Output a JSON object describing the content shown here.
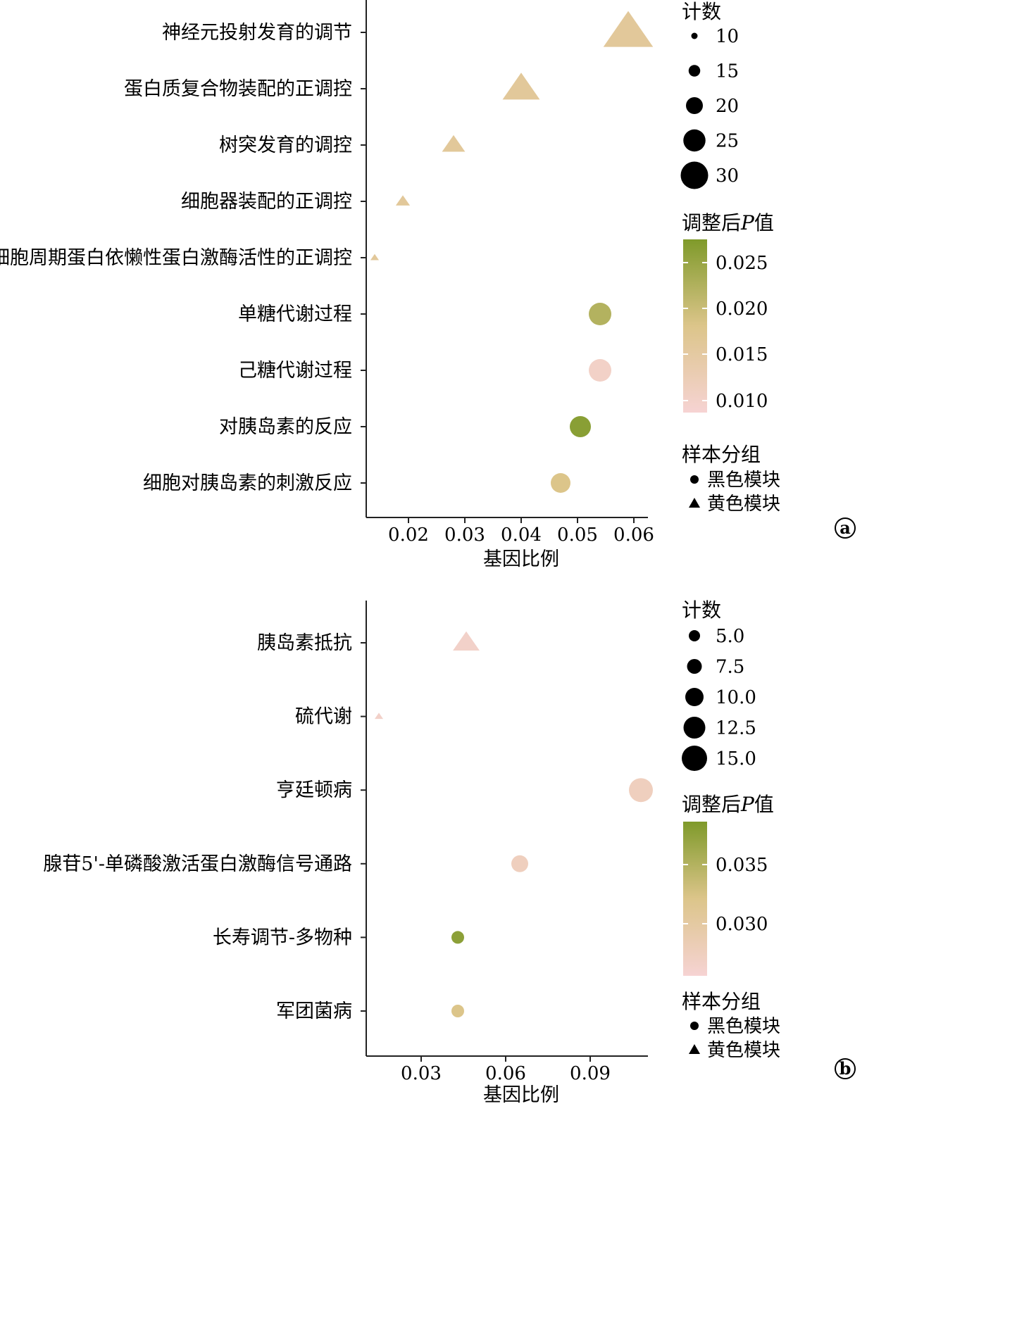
{
  "panels": [
    {
      "label": "a",
      "size_legend_title": "计数",
      "color_legend_title_main": "调整后",
      "color_legend_title_p": "P",
      "color_legend_title_tail": "值",
      "group_legend_title": "样本分组",
      "group_legend_items": [
        "黑色模块",
        "黄色模块"
      ],
      "size_legend_values": [
        "10",
        "15",
        "20",
        "25",
        "30"
      ],
      "color_legend_ticks": [
        "0.025",
        "0.020",
        "0.015",
        "0.010"
      ],
      "chart_data": {
        "type": "scatter",
        "xlabel": "基因比例",
        "xticks": [
          "0.02",
          "0.03",
          "0.04",
          "0.05",
          "0.06"
        ],
        "xlim": [
          0.0125,
          0.0625
        ],
        "categories": [
          "神经元投射发育的调节",
          "蛋白质复合物装配的正调控",
          "树突发育的调控",
          "细胞器装配的正调控",
          "细胞周期蛋白依懒性蛋白激酶活性的正调控",
          "单糖代谢过程",
          "己糖代谢过程",
          "对胰岛素的反应",
          "细胞对胰岛素的刺激反应"
        ],
        "points": [
          {
            "category": "神经元投射发育的调节",
            "x": 0.059,
            "count": 32,
            "padj": 0.016,
            "group": "黄色模块"
          },
          {
            "category": "蛋白质复合物装配的正调控",
            "x": 0.04,
            "count": 25,
            "padj": 0.016,
            "group": "黄色模块"
          },
          {
            "category": "树突发育的调控",
            "x": 0.028,
            "count": 17,
            "padj": 0.016,
            "group": "黄色模块"
          },
          {
            "category": "细胞器装配的正调控",
            "x": 0.019,
            "count": 12,
            "padj": 0.016,
            "group": "黄色模块"
          },
          {
            "category": "细胞周期蛋白依懒性蛋白激酶活性的正调控",
            "x": 0.014,
            "count": 8,
            "padj": 0.016,
            "group": "黄色模块"
          },
          {
            "category": "单糖代谢过程",
            "x": 0.054,
            "count": 20,
            "padj": 0.022,
            "group": "黑色模块"
          },
          {
            "category": "己糖代谢过程",
            "x": 0.054,
            "count": 20,
            "padj": 0.0105,
            "group": "黑色模块"
          },
          {
            "category": "对胰岛素的反应",
            "x": 0.0505,
            "count": 19,
            "padj": 0.026,
            "group": "黑色模块"
          },
          {
            "category": "细胞对胰岛素的刺激反应",
            "x": 0.047,
            "count": 18,
            "padj": 0.018,
            "group": "黑色模块"
          }
        ],
        "color_scale": {
          "low": 0.009,
          "high": 0.027,
          "low_color": "#f6d3d3",
          "mid_color": "#dcc58a",
          "high_color": "#7f9a2a"
        }
      }
    },
    {
      "label": "b",
      "size_legend_title": "计数",
      "color_legend_title_main": "调整后",
      "color_legend_title_p": "P",
      "color_legend_title_tail": "值",
      "group_legend_title": "样本分组",
      "group_legend_items": [
        "黑色模块",
        "黄色模块"
      ],
      "size_legend_values": [
        "5.0",
        "7.5",
        "10.0",
        "12.5",
        "15.0"
      ],
      "color_legend_ticks": [
        "0.035",
        "0.030"
      ],
      "chart_data": {
        "type": "scatter",
        "xlabel": "基因比例",
        "xticks": [
          "0.03",
          "0.06",
          "0.09"
        ],
        "xlim": [
          0.0105,
          0.1105
        ],
        "categories": [
          "胰岛素抵抗",
          "硫代谢",
          "亨廷顿病",
          "腺苷5'-单磷酸激活蛋白激酶信号通路",
          "长寿调节-多物种",
          "军团菌病"
        ],
        "points": [
          {
            "category": "胰岛素抵抗",
            "x": 0.046,
            "count": 12,
            "padj": 0.026,
            "group": "黄色模块"
          },
          {
            "category": "硫代谢",
            "x": 0.015,
            "count": 3,
            "padj": 0.026,
            "group": "黄色模块"
          },
          {
            "category": "亨廷顿病",
            "x": 0.108,
            "count": 14,
            "padj": 0.027,
            "group": "黑色模块"
          },
          {
            "category": "腺苷5'-单磷酸激活蛋白激酶信号通路",
            "x": 0.065,
            "count": 9,
            "padj": 0.027,
            "group": "黑色模块"
          },
          {
            "category": "长寿调节-多物种",
            "x": 0.043,
            "count": 6,
            "padj": 0.038,
            "group": "黑色模块"
          },
          {
            "category": "军团菌病",
            "x": 0.043,
            "count": 6,
            "padj": 0.032,
            "group": "黑色模块"
          }
        ],
        "color_scale": {
          "low": 0.025,
          "high": 0.039,
          "low_color": "#f6d3d3",
          "mid_color": "#dcc58a",
          "high_color": "#7f9a2a"
        }
      }
    }
  ]
}
